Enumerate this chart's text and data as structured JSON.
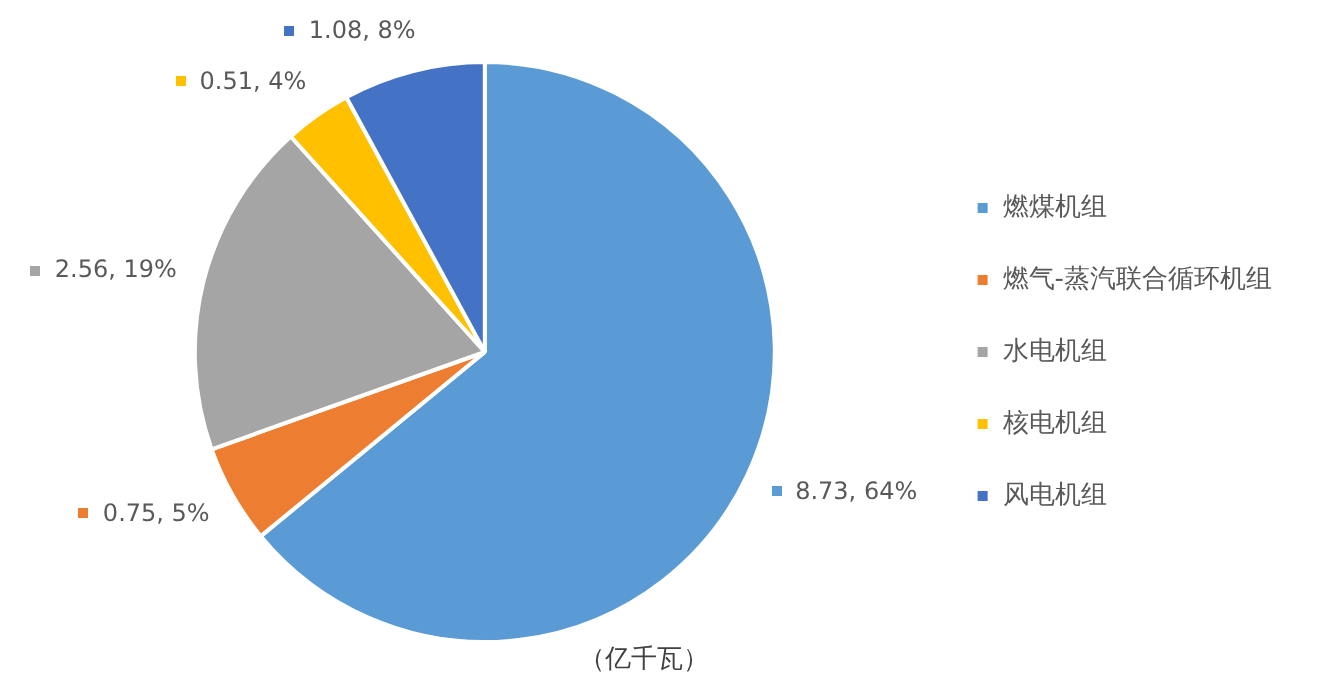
{
  "chart_data": {
    "type": "pie",
    "categories": [
      "燃煤机组",
      "燃气-蒸汽联合循环机组",
      "水电机组",
      "核电机组",
      "风电机组"
    ],
    "values": [
      8.73,
      0.75,
      2.56,
      0.51,
      1.08
    ],
    "colors": [
      "#5b9bd5",
      "#ed7d31",
      "#a5a5a5",
      "#ffc000",
      "#4472c4"
    ],
    "value_labels": [
      "8.73, 64%",
      "0.75, 5%",
      "2.56, 19%",
      "0.51, 4%",
      "1.08, 8%"
    ],
    "legend": "right",
    "annotations": [
      "（亿千瓦）"
    ]
  }
}
